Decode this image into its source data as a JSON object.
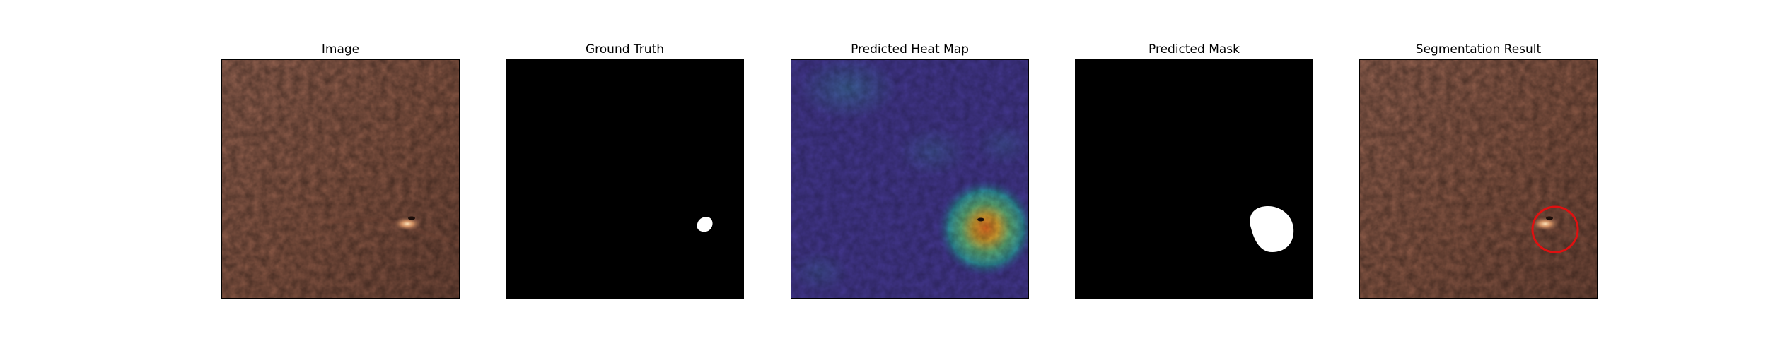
{
  "panels": [
    {
      "title": "Image"
    },
    {
      "title": "Ground Truth"
    },
    {
      "title": "Predicted Heat Map"
    },
    {
      "title": "Predicted Mask"
    },
    {
      "title": "Segmentation Result"
    }
  ],
  "colors": {
    "leather": "#8e5d49",
    "leather_dark": "#6f4536",
    "defect_highlight": "#f2c08e",
    "heatmap_base": "#3d2f8e",
    "heatmap_hot": "#e07a2a",
    "mask_background": "#000000",
    "mask_foreground": "#ffffff",
    "result_circle": "#e01010"
  }
}
